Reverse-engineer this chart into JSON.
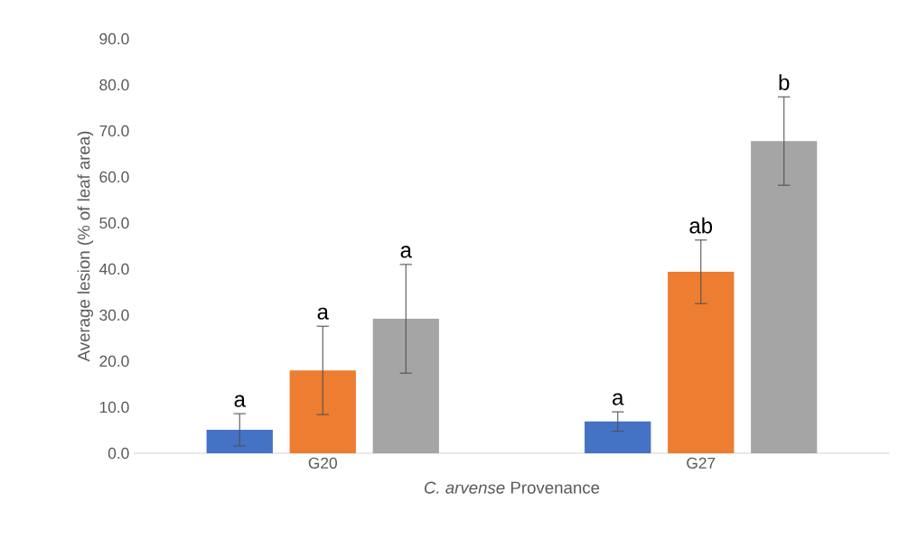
{
  "chart_data": {
    "type": "bar",
    "xlabel": "*C. arvense* Provenance",
    "ylabel": "Average lesion (% of leaf area)",
    "categories": [
      "G20",
      "G27"
    ],
    "series": [
      {
        "color": "#4472c4",
        "values": [
          5.1,
          6.9
        ],
        "errors": [
          3.5,
          2.1
        ]
      },
      {
        "color": "#ed7d31",
        "values": [
          18.0,
          39.4
        ],
        "errors": [
          9.6,
          6.9
        ]
      },
      {
        "color": "#a5a5a5",
        "values": [
          29.2,
          67.8
        ],
        "errors": [
          11.8,
          9.6
        ]
      }
    ],
    "ylim": [
      0,
      90
    ],
    "yticks": [
      {
        "value": 0,
        "label": "0.0"
      },
      {
        "value": 10,
        "label": "10.0"
      },
      {
        "value": 20,
        "label": "20.0"
      },
      {
        "value": 30,
        "label": "30.0"
      },
      {
        "value": 40,
        "label": "40.0"
      },
      {
        "value": 50,
        "label": "50.0"
      },
      {
        "value": 60,
        "label": "60.0"
      },
      {
        "value": 70,
        "label": "70.0"
      },
      {
        "value": 80,
        "label": "80.0"
      },
      {
        "value": 90,
        "label": "90.0"
      }
    ],
    "annotations": [
      "a",
      "a",
      "a",
      "a",
      "ab",
      "b"
    ],
    "grid": false
  }
}
